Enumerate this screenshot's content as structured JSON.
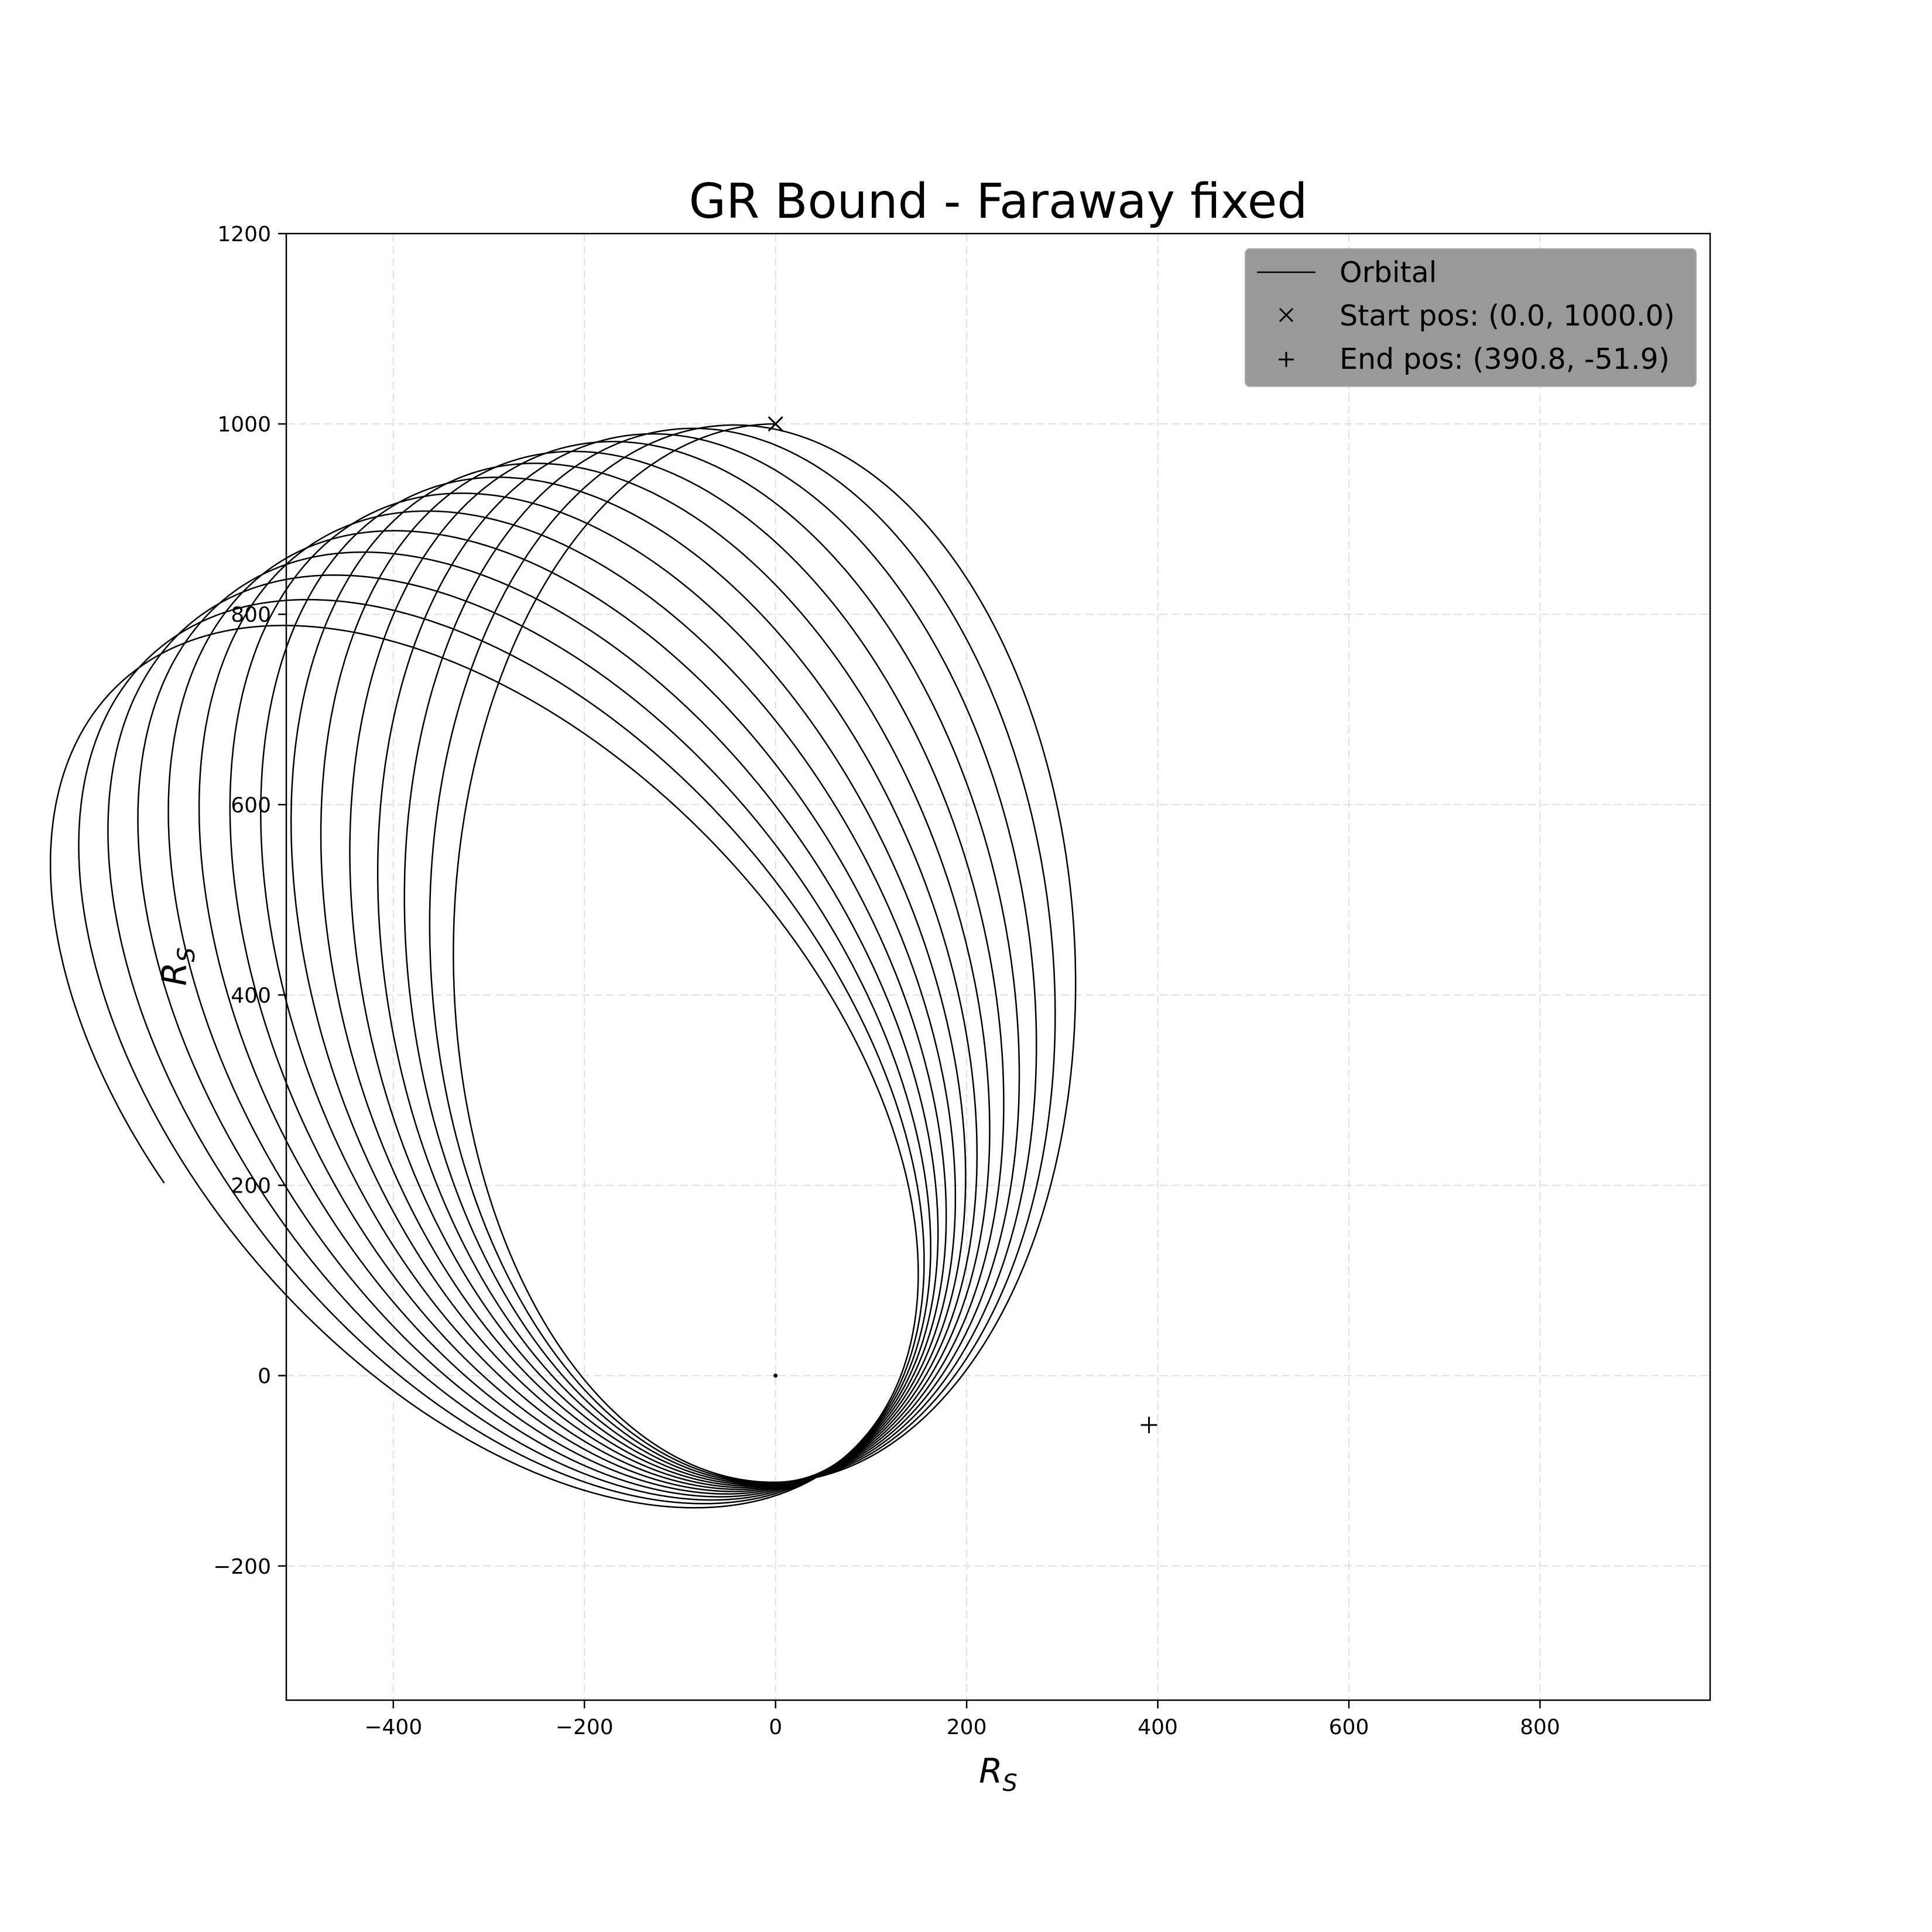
{
  "chart_data": {
    "type": "line",
    "title": "GR Bound - Faraway fixed",
    "xlabel": {
      "main": "R",
      "sub": "S"
    },
    "ylabel": {
      "main": "R",
      "sub": "S"
    },
    "xlim": [
      -512,
      978
    ],
    "ylim": [
      -341,
      1200
    ],
    "xticks": [
      -400,
      -200,
      0,
      200,
      400,
      600,
      800
    ],
    "yticks": [
      -200,
      0,
      200,
      400,
      600,
      800,
      1000,
      1200
    ],
    "xtick_labels": [
      "−400",
      "−200",
      "0",
      "200",
      "400",
      "600",
      "800"
    ],
    "ytick_labels": [
      "−200",
      "0",
      "200",
      "400",
      "600",
      "800",
      "1000",
      "1200"
    ],
    "grid": true,
    "legend_position": "top-right",
    "legend": [
      {
        "label": "Orbital",
        "marker": "line"
      },
      {
        "label": "Start pos: (0.0, 1000.0)",
        "marker": "x"
      },
      {
        "label": "End pos: (390.8, -51.9)",
        "marker": "+"
      }
    ],
    "orbit": {
      "apoapsis_radius": 1000,
      "periapsis_radius": 112,
      "orbit_count": 14,
      "precession_per_orbit_deg": 3.1,
      "start_angle_deg": 90
    },
    "central_body": {
      "x": 0,
      "y": 0
    },
    "start_point": {
      "x": 0.0,
      "y": 1000.0
    },
    "end_point": {
      "x": 390.8,
      "y": -51.9
    },
    "colors": {
      "line": "#000000",
      "grid": "#e0e0e0",
      "legend_background": "#999999",
      "legend_border": "#aaaaaa"
    }
  }
}
